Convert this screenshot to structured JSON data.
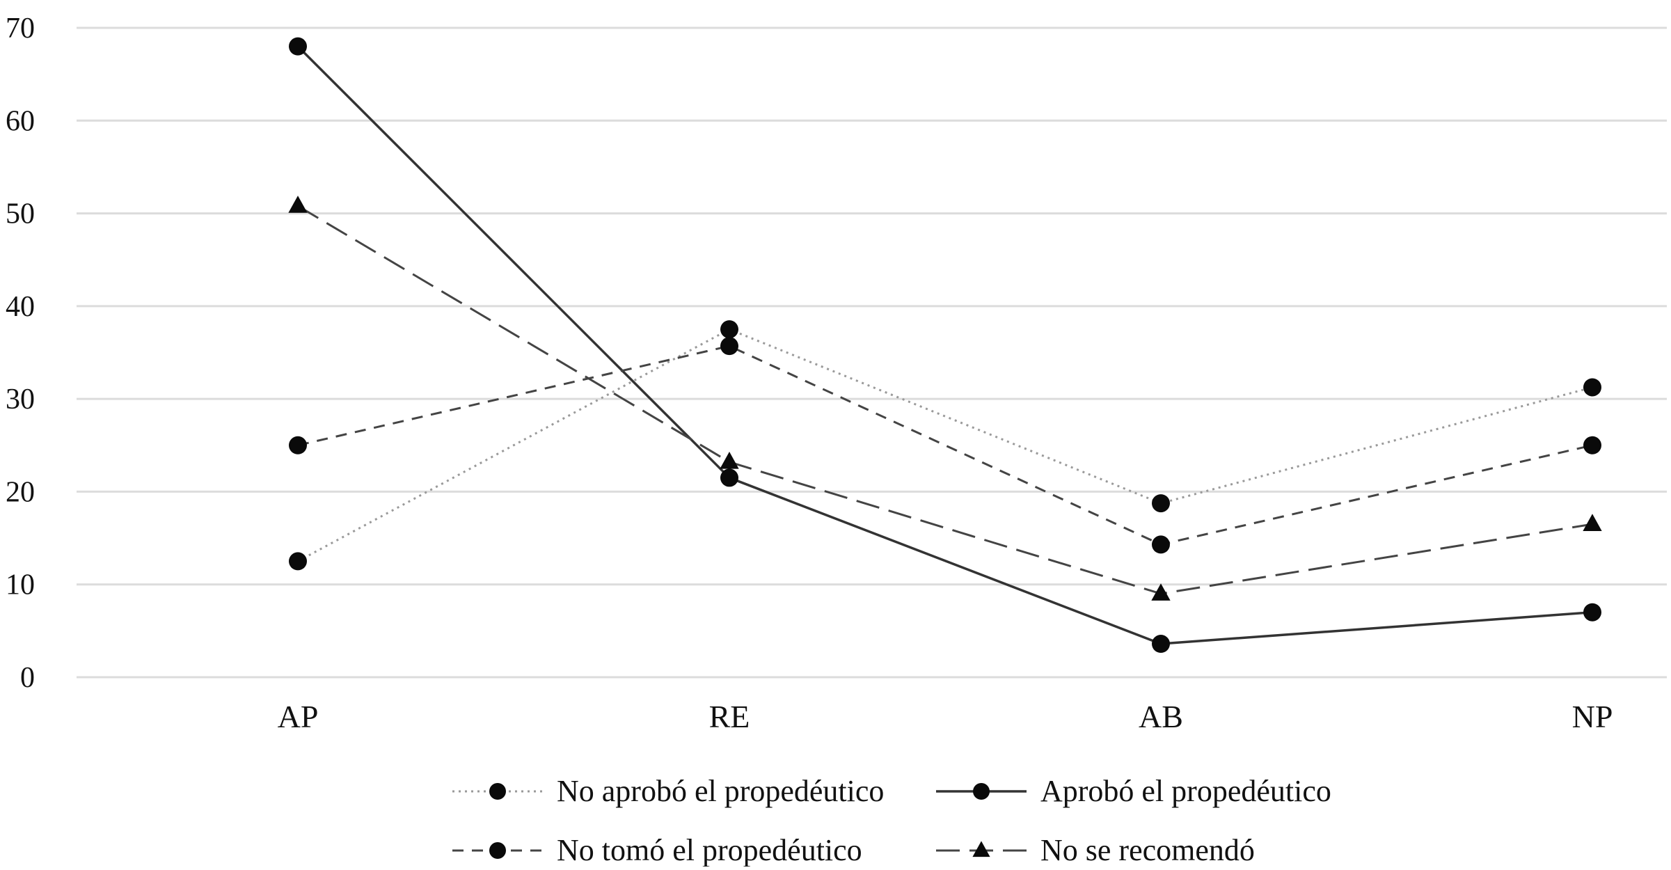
{
  "chart_data": {
    "type": "line",
    "title": "",
    "xlabel": "",
    "ylabel": "",
    "categories": [
      "AP",
      "RE",
      "AB",
      "NP"
    ],
    "ylim": [
      0,
      70
    ],
    "yticks": [
      0,
      10,
      20,
      30,
      40,
      50,
      60,
      70
    ],
    "grid": "horizontal",
    "legend_position": "bottom",
    "series": [
      {
        "name": "No aprobó el propedéutico",
        "values": [
          12.5,
          37.5,
          18.75,
          31.25
        ],
        "line_style": "dotted",
        "marker": "circle",
        "color": "#9a9a9a"
      },
      {
        "name": "Aprobó el propedéutico",
        "values": [
          68,
          21.5,
          3.6,
          7
        ],
        "line_style": "solid",
        "marker": "circle",
        "color": "#333333"
      },
      {
        "name": "No tomó el propedéutico",
        "values": [
          25,
          35.7,
          14.3,
          25
        ],
        "line_style": "short-dash",
        "marker": "circle",
        "color": "#444444"
      },
      {
        "name": "No se recomendó",
        "values": [
          50.8,
          23.2,
          9,
          16.5
        ],
        "line_style": "long-dash",
        "marker": "triangle",
        "color": "#444444"
      }
    ],
    "colors": {
      "grid": "#dcdcdc",
      "marker": "#0a0a0a",
      "text": "#111111"
    }
  }
}
